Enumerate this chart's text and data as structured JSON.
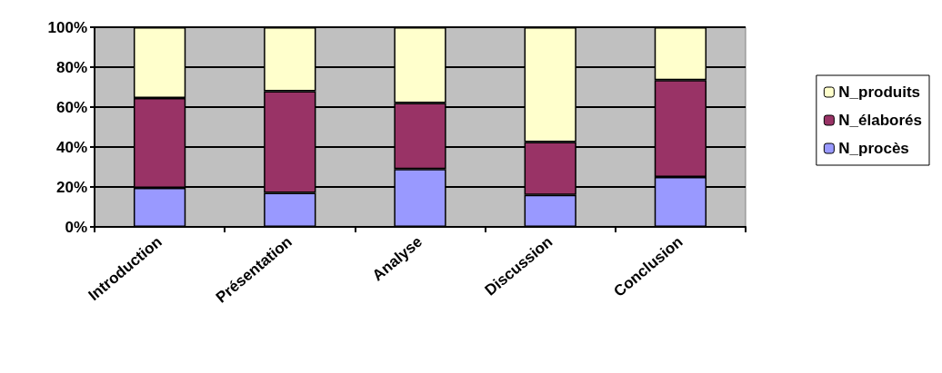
{
  "chart_data": {
    "type": "bar",
    "stacked": true,
    "categories": [
      "Introduction",
      "Présentation",
      "Analyse",
      "Discussion",
      "Conclusion"
    ],
    "series": [
      {
        "name": "N_procès",
        "color": "#9999ff",
        "values": [
          19.5,
          17,
          29,
          16,
          25
        ]
      },
      {
        "name": "N_élaborés",
        "color": "#993366",
        "values": [
          45,
          51,
          33,
          26.5,
          48.5
        ]
      },
      {
        "name": "N_produits",
        "color": "#ffffcc",
        "values": [
          35.5,
          32,
          38,
          57.5,
          26.5
        ]
      }
    ],
    "ylim": [
      0,
      100
    ],
    "yticks": [
      {
        "value": 0,
        "label": "0%"
      },
      {
        "value": 20,
        "label": "20%"
      },
      {
        "value": 40,
        "label": "40%"
      },
      {
        "value": 60,
        "label": "60%"
      },
      {
        "value": 80,
        "label": "80%"
      },
      {
        "value": 100,
        "label": "100%"
      }
    ],
    "grid": "y",
    "legend": "right"
  }
}
